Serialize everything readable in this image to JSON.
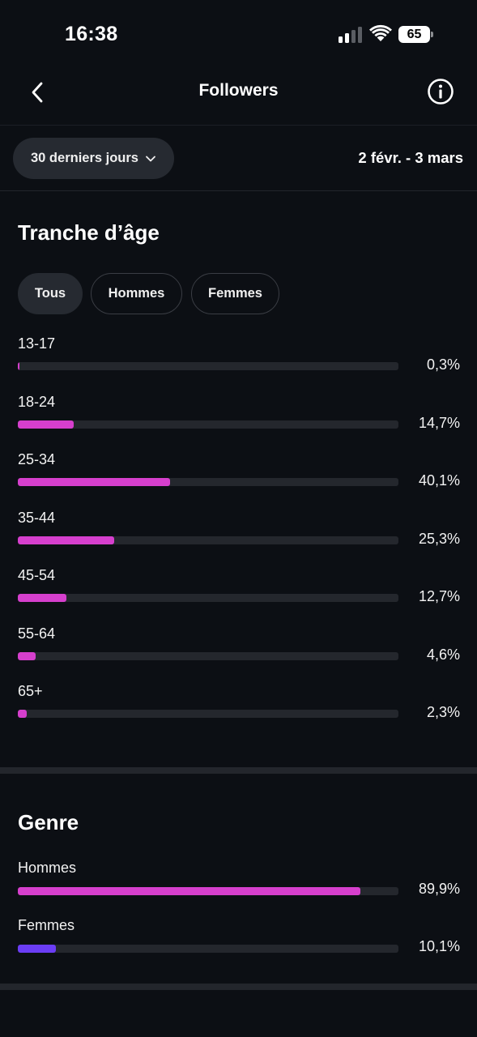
{
  "status_bar": {
    "time": "16:38",
    "battery": "65",
    "signal_bars_active": 2,
    "signal_bars_total": 4
  },
  "nav": {
    "back_icon": "chevron-left-icon",
    "title": "Followers",
    "info_icon": "info-circle-icon"
  },
  "filter": {
    "range_label": "30 derniers jours",
    "range_icon": "chevron-down-icon",
    "date_range": "2 févr. - 3 mars"
  },
  "age": {
    "title": "Tranche d’âge",
    "segments": [
      {
        "label": "Tous",
        "active": true
      },
      {
        "label": "Hommes",
        "active": false
      },
      {
        "label": "Femmes",
        "active": false
      }
    ],
    "rows": [
      {
        "label": "13-17",
        "percent_text": "0,3%",
        "value": 0.3
      },
      {
        "label": "18-24",
        "percent_text": "14,7%",
        "value": 14.7
      },
      {
        "label": "25-34",
        "percent_text": "40,1%",
        "value": 40.1
      },
      {
        "label": "35-44",
        "percent_text": "25,3%",
        "value": 25.3
      },
      {
        "label": "45-54",
        "percent_text": "12,7%",
        "value": 12.7
      },
      {
        "label": "55-64",
        "percent_text": "4,6%",
        "value": 4.6
      },
      {
        "label": "65+",
        "percent_text": "2,3%",
        "value": 2.3
      }
    ],
    "bar_color": "#d63fcd"
  },
  "genre": {
    "title": "Genre",
    "rows": [
      {
        "label": "Hommes",
        "percent_text": "89,9%",
        "value": 89.9,
        "color": "#d63fcd"
      },
      {
        "label": "Femmes",
        "percent_text": "10,1%",
        "value": 10.1,
        "color": "#6b3df5"
      }
    ]
  },
  "colors": {
    "background": "#0c0f14",
    "track": "#24272d",
    "pill": "#262a31"
  }
}
